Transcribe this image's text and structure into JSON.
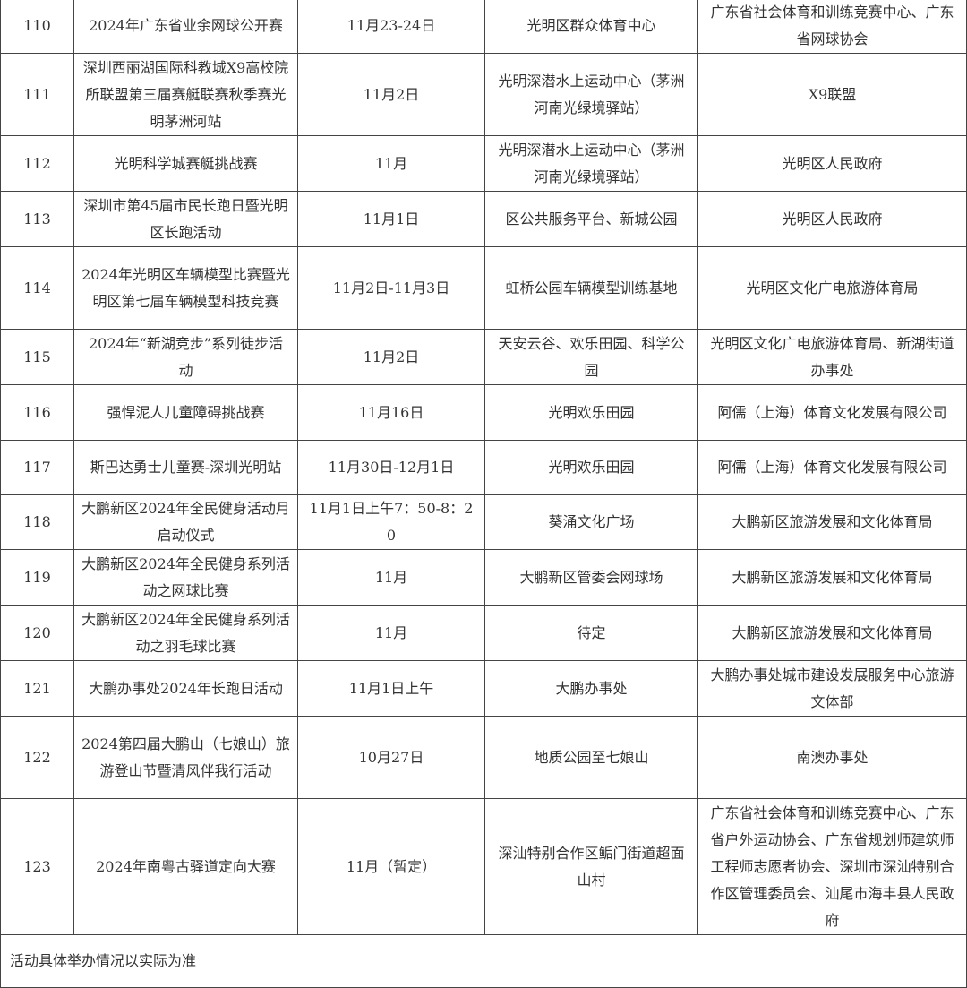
{
  "rows": [
    {
      "no": "110",
      "name": "2024年广东省业余网球公开赛",
      "date": "11月23-24日",
      "venue": "光明区群众体育中心",
      "organizer": "广东省社会体育和训练竞赛中心、广东省网球协会"
    },
    {
      "no": "111",
      "name": "深圳西丽湖国际科教城X9高校院所联盟第三届赛艇联赛秋季赛光明茅洲河站",
      "date": "11月2日",
      "venue": "光明深潜水上运动中心（茅洲河南光绿境驿站）",
      "organizer": "X9联盟"
    },
    {
      "no": "112",
      "name": "光明科学城赛艇挑战赛",
      "date": "11月",
      "venue": "光明深潜水上运动中心（茅洲河南光绿境驿站）",
      "organizer": "光明区人民政府"
    },
    {
      "no": "113",
      "name": "深圳市第45届市民长跑日暨光明区长跑活动",
      "date": "11月1日",
      "venue": "区公共服务平台、新城公园",
      "organizer": "光明区人民政府"
    },
    {
      "no": "114",
      "name": "2024年光明区车辆模型比赛暨光明区第七届车辆模型科技竞赛",
      "date": "11月2日-11月3日",
      "venue": "虹桥公园车辆模型训练基地",
      "organizer": "光明区文化广电旅游体育局"
    },
    {
      "no": "115",
      "name": "2024年“新湖竞步”系列徒步活动",
      "date": "11月2日",
      "venue": "天安云谷、欢乐田园、科学公园",
      "organizer": "光明区文化广电旅游体育局、新湖街道办事处"
    },
    {
      "no": "116",
      "name": "强悍泥人儿童障碍挑战赛",
      "date": "11月16日",
      "venue": "光明欢乐田园",
      "organizer": "阿儒（上海）体育文化发展有限公司"
    },
    {
      "no": "117",
      "name": "斯巴达勇士儿童赛-深圳光明站",
      "date": "11月30日-12月1日",
      "venue": "光明欢乐田园",
      "organizer": "阿儒（上海）体育文化发展有限公司"
    },
    {
      "no": "118",
      "name": "大鹏新区2024年全民健身活动月启动仪式",
      "date": "11月1日上午7：50-8：20",
      "venue": "葵涌文化广场",
      "organizer": "大鹏新区旅游发展和文化体育局"
    },
    {
      "no": "119",
      "name": "大鹏新区2024年全民健身系列活动之网球比赛",
      "date": "11月",
      "venue": "大鹏新区管委会网球场",
      "organizer": "大鹏新区旅游发展和文化体育局"
    },
    {
      "no": "120",
      "name": "大鹏新区2024年全民健身系列活动之羽毛球比赛",
      "date": "11月",
      "venue": "待定",
      "organizer": "大鹏新区旅游发展和文化体育局"
    },
    {
      "no": "121",
      "name": "大鹏办事处2024年长跑日活动",
      "date": "11月1日上午",
      "venue": "大鹏办事处",
      "organizer": "大鹏办事处城市建设发展服务中心旅游文体部"
    },
    {
      "no": "122",
      "name": "2024第四届大鹏山（七娘山）旅游登山节暨清风伴我行活动",
      "date": "10月27日",
      "venue": "地质公园至七娘山",
      "organizer": "南澳办事处"
    },
    {
      "no": "123",
      "name": "2024年南粤古驿道定向大赛",
      "date": "11月（暂定）",
      "venue": "深汕特别合作区鲘门街道超面山村",
      "organizer": "广东省社会体育和训练竞赛中心、广东省户外运动协会、广东省规划师建筑师工程师志愿者协会、深圳市深汕特别合作区管理委员会、汕尾市海丰县人民政府"
    }
  ],
  "note": "活动具体举办情况以实际为准"
}
